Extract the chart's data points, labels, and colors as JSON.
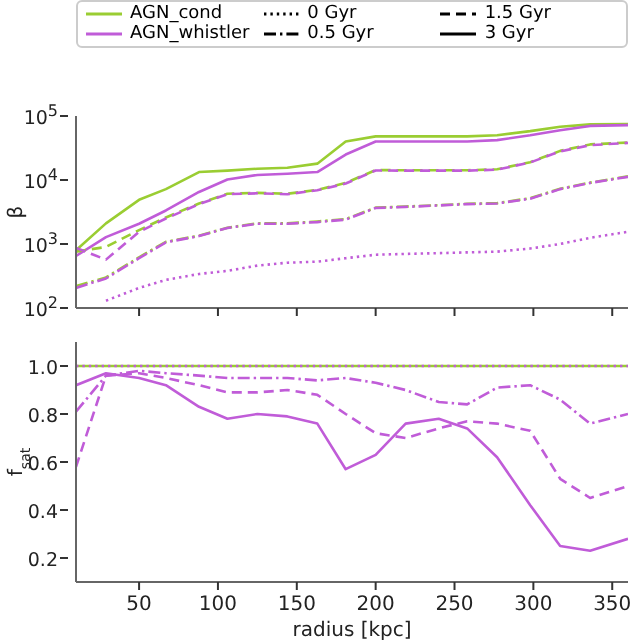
{
  "chart_data": [
    {
      "type": "line",
      "ylabel": "β",
      "log": "y",
      "x": [
        10,
        29,
        50,
        67,
        88,
        106,
        125,
        144,
        163,
        181,
        200,
        219,
        240,
        258,
        277,
        298,
        317,
        336,
        360
      ],
      "xlim": [
        10,
        360
      ],
      "xticks": [
        {
          "value": 50,
          "label": null
        },
        {
          "value": 100,
          "label": null
        },
        {
          "value": 150,
          "label": null
        },
        {
          "value": 200,
          "label": null
        },
        {
          "value": 250,
          "label": null
        },
        {
          "value": 300,
          "label": null
        },
        {
          "value": 350,
          "label": null
        }
      ],
      "ylim": [
        100,
        100000
      ],
      "yticks": [
        {
          "value": 100,
          "label": "10$^{2}$"
        },
        {
          "value": 1000,
          "label": "10$^{3}$"
        },
        {
          "value": 10000,
          "label": "10$^{4}$"
        },
        {
          "value": 100000,
          "label": "10$^{5}$"
        }
      ],
      "tick_labels": "y",
      "legend": "top",
      "marker": "none",
      "series": [
        {
          "name": "AGN_cond",
          "color": "#9acd32",
          "line_style": "solid",
          "values": [
            800,
            2100,
            4900,
            7200,
            13300,
            14000,
            15000,
            15500,
            18000,
            40000,
            48000,
            48000,
            48000,
            48000,
            50000,
            58000,
            68000,
            74000,
            75000
          ]
        },
        {
          "name": "AGN_whistler",
          "color": "#c05cd8",
          "line_style": "solid",
          "values": [
            650,
            1280,
            2070,
            3340,
            6500,
            10200,
            12000,
            12500,
            13300,
            25000,
            40000,
            40000,
            40000,
            40000,
            42000,
            50000,
            60000,
            70000,
            72000
          ]
        },
        {
          "color": "#9acd32",
          "line_style": "dashed",
          "values": [
            760,
            900,
            1650,
            2600,
            4300,
            6100,
            6300,
            6100,
            7000,
            9000,
            14300,
            14200,
            14200,
            14200,
            14700,
            19000,
            28500,
            36000,
            38500
          ]
        },
        {
          "color": "#c05cd8",
          "line_style": "dashed",
          "values": [
            870,
            570,
            1550,
            2500,
            4200,
            6000,
            6200,
            6000,
            6900,
            8800,
            14100,
            14000,
            14000,
            14000,
            14500,
            18800,
            28000,
            35000,
            38000
          ]
        },
        {
          "color": "#9acd32",
          "line_style": "dashdot",
          "values": [
            220,
            300,
            620,
            1080,
            1350,
            1800,
            2100,
            2100,
            2250,
            2450,
            3700,
            3850,
            4050,
            4250,
            4350,
            5200,
            7300,
            9100,
            11400
          ]
        },
        {
          "color": "#c05cd8",
          "line_style": "dashdot",
          "values": [
            206,
            290,
            600,
            1060,
            1330,
            1780,
            2070,
            2070,
            2200,
            2400,
            3660,
            3800,
            4000,
            4200,
            4300,
            5100,
            7200,
            9000,
            11200
          ]
        },
        {
          "color": "#c05cd8",
          "line_style": "dotted",
          "values": [
            null,
            130,
            206,
            275,
            340,
            380,
            460,
            510,
            530,
            600,
            680,
            700,
            720,
            740,
            760,
            850,
            1000,
            1250,
            1550
          ]
        },
        {
          "name": "0 Gyr",
          "color": "#000000",
          "line_style": "dotted",
          "values": [
            null,
            null,
            null,
            null,
            null,
            null,
            null,
            null,
            null,
            null,
            null,
            null,
            null,
            null,
            null,
            null,
            null,
            null,
            null
          ]
        },
        {
          "name": "0.5 Gyr",
          "color": "#000000",
          "line_style": "dashdot",
          "values": [
            null,
            null,
            null,
            null,
            null,
            null,
            null,
            null,
            null,
            null,
            null,
            null,
            null,
            null,
            null,
            null,
            null,
            null,
            null
          ]
        },
        {
          "name": "1.5 Gyr",
          "color": "#000000",
          "line_style": "dashed",
          "values": [
            null,
            null,
            null,
            null,
            null,
            null,
            null,
            null,
            null,
            null,
            null,
            null,
            null,
            null,
            null,
            null,
            null,
            null,
            null
          ]
        },
        {
          "name": "3 Gyr",
          "color": "#000000",
          "line_style": "solid",
          "values": [
            null,
            null,
            null,
            null,
            null,
            null,
            null,
            null,
            null,
            null,
            null,
            null,
            null,
            null,
            null,
            null,
            null,
            null,
            null
          ]
        }
      ]
    },
    {
      "type": "line",
      "xlabel": "radius [kpc]",
      "ylabel": "f$_{sat}$",
      "x": [
        10,
        29,
        50,
        67,
        88,
        106,
        125,
        144,
        163,
        181,
        200,
        219,
        240,
        258,
        277,
        298,
        317,
        336,
        360
      ],
      "xlim": [
        10,
        360
      ],
      "xticks": [
        50,
        100,
        150,
        200,
        250,
        300,
        350
      ],
      "ylim": [
        0.1,
        1.1
      ],
      "yticks": [
        0.2,
        0.4,
        0.6,
        0.8,
        {
          "value": 1,
          "label": "1.0"
        }
      ],
      "marker": "none",
      "series": [
        {
          "color": "#9acd32",
          "line_style": "solid",
          "values": [
            1.0,
            1.0,
            1.0,
            1.0,
            1.0,
            1.0,
            1.0,
            1.0,
            1.0,
            1.0,
            1.0,
            1.0,
            1.0,
            1.0,
            1.0,
            1.0,
            1.0,
            1.0,
            1.0
          ]
        },
        {
          "color": "#c05cd8",
          "line_style": "dotted",
          "values": [
            1.0,
            1.0,
            1.0,
            1.0,
            1.0,
            1.0,
            1.0,
            1.0,
            1.0,
            1.0,
            1.0,
            1.0,
            1.0,
            1.0,
            1.0,
            1.0,
            1.0,
            1.0,
            1.0
          ]
        },
        {
          "color": "#c05cd8",
          "line_style": "dashdot",
          "values": [
            0.81,
            0.96,
            0.98,
            0.97,
            0.96,
            0.95,
            0.95,
            0.95,
            0.94,
            0.95,
            0.93,
            0.9,
            0.85,
            0.84,
            0.91,
            0.92,
            0.86,
            0.76,
            0.8
          ]
        },
        {
          "color": "#c05cd8",
          "line_style": "dashed",
          "values": [
            0.58,
            0.96,
            0.97,
            0.95,
            0.92,
            0.89,
            0.89,
            0.9,
            0.88,
            0.8,
            0.72,
            0.7,
            0.74,
            0.77,
            0.76,
            0.73,
            0.53,
            0.45,
            0.5
          ]
        },
        {
          "color": "#c05cd8",
          "line_style": "solid",
          "values": [
            0.92,
            0.97,
            0.95,
            0.92,
            0.83,
            0.78,
            0.8,
            0.79,
            0.76,
            0.57,
            0.63,
            0.76,
            0.78,
            0.74,
            0.62,
            0.42,
            0.25,
            0.23,
            0.28
          ]
        }
      ]
    }
  ]
}
